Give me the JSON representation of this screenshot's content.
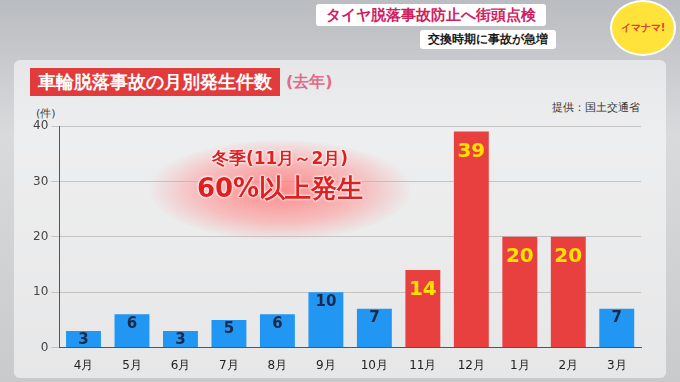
{
  "header": {
    "headline": "タイヤ脱落事故防止へ街頭点検",
    "subheadline": "交換時期に事故が急増",
    "logo": "イマナマ!"
  },
  "chart_data": {
    "type": "bar",
    "title": "車輪脱落事故の月別発生件数",
    "subtitle": "(去年)",
    "source": "提供：国土交通省",
    "y_label": "(件)",
    "annotations": [
      "冬季(11月～2月)",
      "60%以上発生"
    ],
    "categories": [
      "4月",
      "5月",
      "6月",
      "7月",
      "8月",
      "9月",
      "10月",
      "11月",
      "12月",
      "1月",
      "2月",
      "3月"
    ],
    "values": [
      3,
      6,
      3,
      5,
      6,
      10,
      7,
      14,
      39,
      20,
      20,
      7
    ],
    "colors": [
      "#2196f3",
      "#2196f3",
      "#2196f3",
      "#2196f3",
      "#2196f3",
      "#2196f3",
      "#2196f3",
      "#e8403f",
      "#e8403f",
      "#e8403f",
      "#e8403f",
      "#2196f3"
    ],
    "ylim": [
      0,
      40
    ],
    "yticks": [
      0,
      10,
      20,
      30,
      40
    ],
    "grid": true,
    "data_labels": true
  }
}
